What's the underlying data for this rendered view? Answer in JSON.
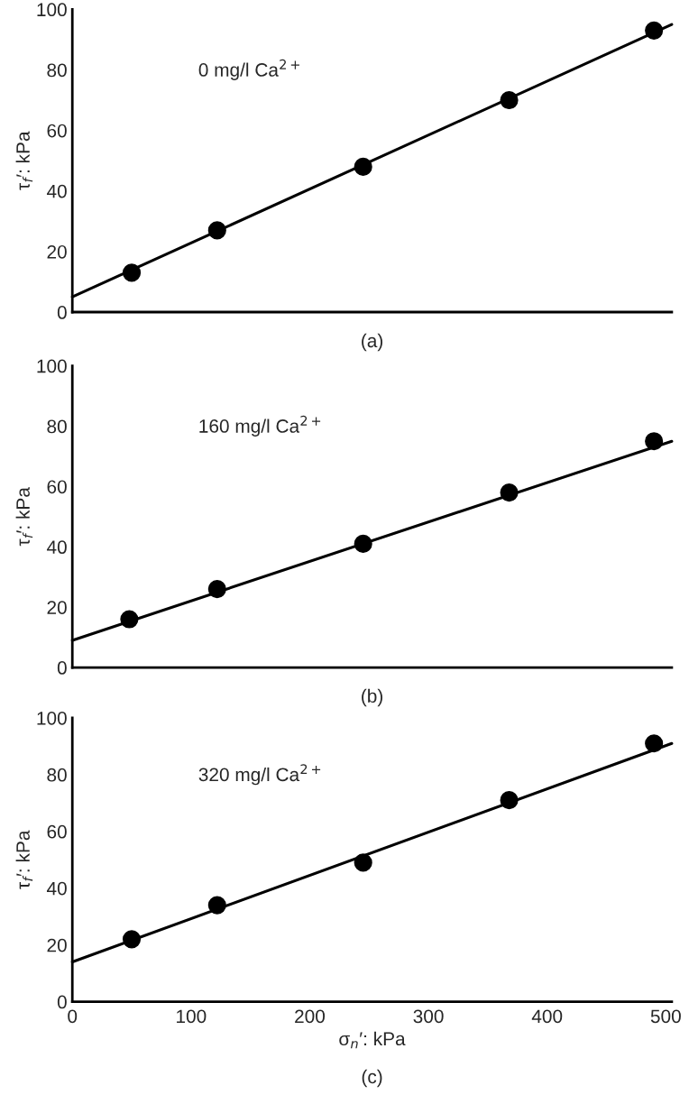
{
  "chart_data": [
    {
      "type": "scatter",
      "ylabel": "τ$_{f}$′: kPa",
      "annotations": [
        "0 mg/l Ca$^{2+}$",
        "(a)"
      ],
      "xlim": [
        0,
        505
      ],
      "xticks": [
        0,
        100,
        200,
        300,
        400,
        500
      ],
      "ylim": [
        0,
        100
      ],
      "yticks": [
        0,
        20,
        40,
        60,
        80,
        100
      ],
      "tick_labels": "y",
      "marker": "circle",
      "series": [
        {
          "color": "#000000",
          "x": [
            50,
            122,
            245,
            368,
            490
          ],
          "values": [
            13,
            27,
            48,
            70,
            93
          ]
        },
        {
          "type": "line",
          "color": "#000000",
          "line_style": "solid",
          "marker": "none",
          "x": [
            0,
            505
          ],
          "values": [
            5,
            95
          ]
        }
      ]
    },
    {
      "type": "scatter",
      "ylabel": "τ$_{f}$′: kPa",
      "annotations": [
        "160 mg/l Ca$^{2+}$",
        "(b)"
      ],
      "xlim": [
        0,
        505
      ],
      "xticks": [
        0,
        100,
        200,
        300,
        400,
        500
      ],
      "ylim": [
        0,
        100
      ],
      "yticks": [
        0,
        20,
        40,
        60,
        80,
        100
      ],
      "tick_labels": "y",
      "marker": "circle",
      "series": [
        {
          "color": "#000000",
          "x": [
            48,
            122,
            245,
            368,
            490
          ],
          "values": [
            16,
            26,
            41,
            58,
            75
          ]
        },
        {
          "type": "line",
          "color": "#000000",
          "line_style": "solid",
          "marker": "none",
          "x": [
            0,
            505
          ],
          "values": [
            9,
            75
          ]
        }
      ]
    },
    {
      "type": "scatter",
      "xlabel": "σ$_{n}$′: kPa",
      "ylabel": "τ$_{f}$′: kPa",
      "annotations": [
        "320 mg/l Ca$^{2+}$",
        "(c)"
      ],
      "xlim": [
        0,
        505
      ],
      "xticks": [
        0,
        100,
        200,
        300,
        400,
        500
      ],
      "ylim": [
        0,
        100
      ],
      "yticks": [
        0,
        20,
        40,
        60,
        80,
        100
      ],
      "marker": "circle",
      "series": [
        {
          "color": "#000000",
          "x": [
            50,
            122,
            245,
            368,
            490
          ],
          "values": [
            22,
            34,
            49,
            71,
            91
          ]
        },
        {
          "type": "line",
          "color": "#000000",
          "line_style": "solid",
          "marker": "none",
          "x": [
            0,
            505
          ],
          "values": [
            14,
            91
          ]
        }
      ]
    }
  ]
}
